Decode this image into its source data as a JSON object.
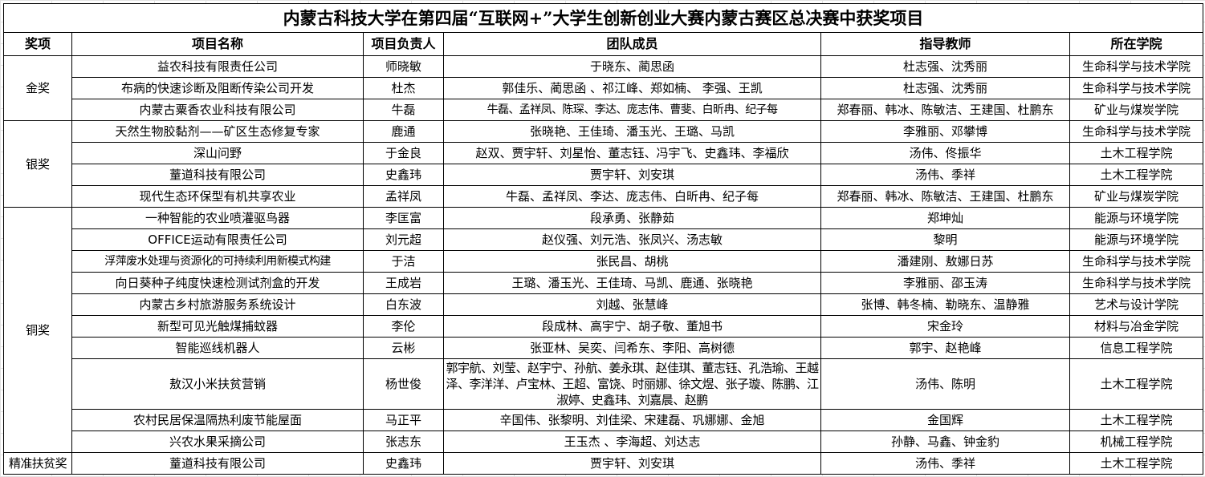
{
  "title": "内蒙古科技大学在第四届“互联网+”大学生创新创业大赛内蒙古赛区总决赛中获奖项目",
  "headers": [
    "奖项",
    "项目名称",
    "项目负责人",
    "团队成员",
    "指导教师",
    "所在学院"
  ],
  "groups": [
    {
      "award": "金奖",
      "rows": [
        {
          "project": "益农科技有限责任公司",
          "leader": "师晓敏",
          "members": "于晓东、蔺思函",
          "advisors": "杜志强、沈秀丽",
          "college": "生命科学与技术学院"
        },
        {
          "project": "布病的快速诊断及阻断传染公司开发",
          "leader": "杜杰",
          "members": "郭佳乐、蔺思函 、祁江峰、郑如楠、 李强、王凯",
          "advisors": "杜志强、沈秀丽",
          "college": "生命科学与技术学院"
        },
        {
          "project": "内蒙古粟香农业科技有限公司",
          "leader": "牛磊",
          "members": "牛磊、孟祥凤、陈琛、李达、庞志伟、曹斐、白昕冉、纪子每",
          "advisors": "郑春丽、韩冰、陈敏洁、王建国、杜鹏东",
          "college": "矿业与煤炭学院"
        }
      ]
    },
    {
      "award": "银奖",
      "rows": [
        {
          "project": "天然生物胶黏剂——矿区生态修复专家",
          "leader": "鹿通",
          "members": "张晓艳、王佳琦、潘玉光、王璐、马凯",
          "advisors": "李雅丽、邓攀博",
          "college": "生命科学与技术学院"
        },
        {
          "project": "深山问野",
          "leader": "于金良",
          "members": "赵双、贾宇轩、刘星怡、董志钰、冯宇飞、史鑫玮、李福欣",
          "advisors": "汤伟、佟振华",
          "college": "土木工程学院"
        },
        {
          "project": "蕫道科技有限公司",
          "leader": "史鑫玮",
          "members": "贾宇轩、刘安琪",
          "advisors": "汤伟、季祥",
          "college": "土木工程学院"
        },
        {
          "project": "现代生态环保型有机共享农业",
          "leader": "孟祥凤",
          "members": "牛磊、孟祥凤、李达、庞志伟、白昕冉、纪子每",
          "advisors": "郑春丽、韩冰、陈敏洁、王建国、杜鹏东",
          "college": "矿业与煤炭学院"
        }
      ]
    },
    {
      "award": "铜奖",
      "rows": [
        {
          "project": "一种智能的农业喷灌驱鸟器",
          "leader": "李匡富",
          "members": "段承勇、张静茹",
          "advisors": "郑坤灿",
          "college": "能源与环境学院"
        },
        {
          "project": "OFFICE运动有限责任公司",
          "leader": "刘元超",
          "members": "赵仪强、刘元浩、张凤兴、汤志敏",
          "advisors": "黎明",
          "college": "能源与环境学院"
        },
        {
          "project": "浮萍废水处理与资源化的可持续利用新模式构建",
          "leader": "于洁",
          "members": "张民昌、胡桃",
          "advisors": "潘建刚、敖娜日苏",
          "college": "生命科学与技术学院"
        },
        {
          "project": "向日葵种子纯度快速检测试剂盒的开发",
          "leader": "王成岩",
          "members": "王璐、潘玉光、王佳琦、马凯、鹿通、张晓艳",
          "advisors": "李雅丽、邵玉涛",
          "college": "生命科学与技术学院"
        },
        {
          "project": "内蒙古乡村旅游服务系统设计",
          "leader": "白东波",
          "members": "刘越、张慧峰",
          "advisors": "张博、韩冬楠、勒晓东、温静雅",
          "college": "艺术与设计学院"
        },
        {
          "project": "新型可见光触煤捕蚊器",
          "leader": "李伦",
          "members": "段成林、高宇宁、胡子敬、董旭书",
          "advisors": "宋金玲",
          "college": "材料与冶金学院"
        },
        {
          "project": "智能巡线机器人",
          "leader": "云彬",
          "members": "张亚林、吴奕、闫希东、李阳、高树德",
          "advisors": "郭宇、赵艳峰",
          "college": "信息工程学院"
        },
        {
          "project": "敖汉小米扶贫营销",
          "leader": "杨世俊",
          "members": "郭宇航、刘莹、赵宇宁、孙航、姜永琪、赵佳琪、董志钰、孔浩瑜、王越泽、李洋洋、卢宝林、王超、富饶、时丽娜、徐文煜、张子璇、陈鹏、江淑婷、史鑫玮、刘嘉晨、赵鹏",
          "advisors": "汤伟、陈明",
          "college": "土木工程学院",
          "tall": true
        },
        {
          "project": "农村民居保温隔热利废节能屋面",
          "leader": "马正平",
          "members": "辛国伟、张黎明、刘佳梁、宋建磊、巩娜娜、金旭",
          "advisors": "金国辉",
          "college": "土木工程学院"
        },
        {
          "project": "兴农水果采摘公司",
          "leader": "张志东",
          "members": "王玉杰 、李海超、刘达志",
          "advisors": "孙静、马鑫、钟金豹",
          "college": "机械工程学院"
        }
      ]
    },
    {
      "award": "精准扶贫奖",
      "rows": [
        {
          "project": "蕫道科技有限公司",
          "leader": "史鑫玮",
          "members": "贾宇轩、刘安琪",
          "advisors": "汤伟、季祥",
          "college": "土木工程学院"
        }
      ]
    }
  ]
}
